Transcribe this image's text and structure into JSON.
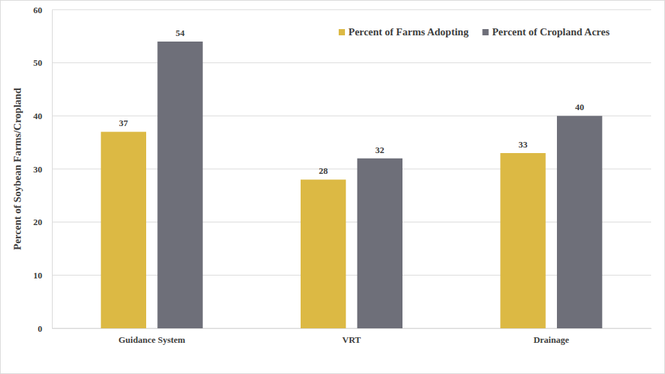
{
  "chart_data": {
    "type": "bar",
    "y_label": "Percent of Soybean Farms/Cropland",
    "categories": [
      "Guidance System",
      "VRT",
      "Drainage"
    ],
    "series": [
      {
        "name": "Percent of Farms Adopting",
        "color": "#dcb944",
        "values": [
          37,
          28,
          33
        ]
      },
      {
        "name": "Percent of Cropland Acres",
        "color": "#6e6f79",
        "values": [
          54,
          32,
          40
        ]
      }
    ],
    "ylim": [
      0,
      60
    ],
    "yticks": [
      0,
      10,
      20,
      30,
      40,
      50,
      60
    ],
    "grid": true,
    "legend": "top-right",
    "data_labels": true
  }
}
